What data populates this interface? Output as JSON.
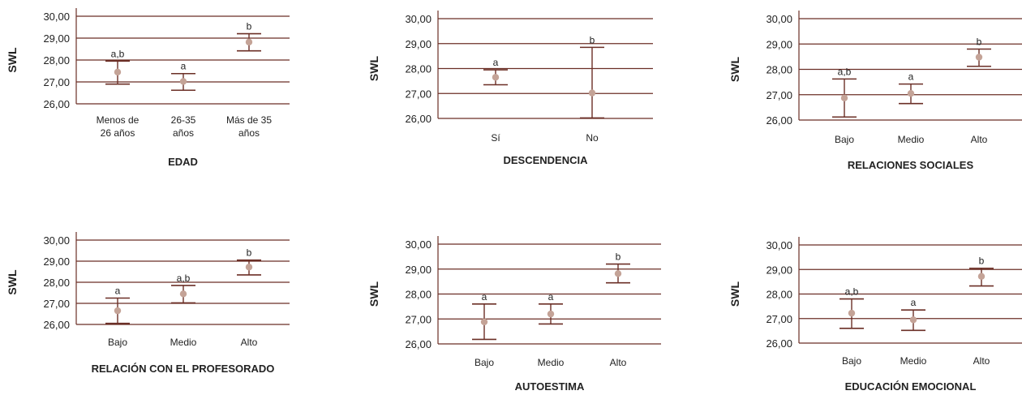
{
  "style": {
    "grid_color": "#6b2f26",
    "bar_color": "#6b2f26",
    "point_color": "#c4a397",
    "text_color": "#222222"
  },
  "chart_data": [
    {
      "type": "errorbar",
      "xlabel": "EDAD",
      "ylabel": "SWL",
      "yticks": [
        "30,00",
        "29,00",
        "28,00",
        "27,00",
        "26,00"
      ],
      "ylim": [
        26,
        30
      ],
      "grid": true,
      "categories": [
        [
          "Menos de",
          "26 años"
        ],
        [
          "26-35",
          "años"
        ],
        [
          "Más de 35",
          "años"
        ]
      ],
      "means": [
        27.45,
        27.02,
        28.82
      ],
      "lower": [
        26.9,
        26.62,
        28.42
      ],
      "upper": [
        27.95,
        27.38,
        29.2
      ],
      "groups": [
        "a,b",
        "a",
        "b"
      ]
    },
    {
      "type": "errorbar",
      "xlabel": "DESCENDENCIA",
      "ylabel": "SWL",
      "yticks": [
        "30,00",
        "29,00",
        "28,00",
        "27,00",
        "26,00"
      ],
      "ylim": [
        26,
        30
      ],
      "grid": true,
      "categories": [
        [
          "Sí"
        ],
        [
          "No"
        ]
      ],
      "means": [
        27.65,
        27.02
      ],
      "lower": [
        27.35,
        26.02
      ],
      "upper": [
        27.95,
        28.85
      ],
      "groups": [
        "a",
        "b"
      ]
    },
    {
      "type": "errorbar",
      "xlabel": "RELACIONES SOCIALES",
      "ylabel": "SWL",
      "yticks": [
        "30,00",
        "29,00",
        "28,00",
        "27,00",
        "26,00"
      ],
      "ylim": [
        26,
        30
      ],
      "grid": true,
      "categories": [
        [
          "Bajo"
        ],
        [
          "Medio"
        ],
        [
          "Alto"
        ]
      ],
      "means": [
        26.87,
        27.05,
        28.48
      ],
      "lower": [
        26.12,
        26.65,
        28.12
      ],
      "upper": [
        27.62,
        27.42,
        28.8
      ],
      "groups": [
        "a,b",
        "a",
        "b"
      ]
    },
    {
      "type": "errorbar",
      "xlabel": "RELACIÓN CON EL PROFESORADO",
      "ylabel": "SWL",
      "yticks": [
        "30,00",
        "29,00",
        "28,00",
        "27,00",
        "26,00"
      ],
      "ylim": [
        26,
        30
      ],
      "grid": true,
      "categories": [
        [
          "Bajo"
        ],
        [
          "Medio"
        ],
        [
          "Alto"
        ]
      ],
      "means": [
        26.65,
        27.45,
        28.72
      ],
      "lower": [
        26.05,
        27.02,
        28.35
      ],
      "upper": [
        27.25,
        27.85,
        29.05
      ],
      "groups": [
        "a",
        "a,b",
        "b"
      ]
    },
    {
      "type": "errorbar",
      "xlabel": "AUTOESTIMA",
      "ylabel": "SWL",
      "yticks": [
        "30,00",
        "29,00",
        "28,00",
        "27,00",
        "26,00"
      ],
      "ylim": [
        26,
        30
      ],
      "grid": true,
      "categories": [
        [
          "Bajo"
        ],
        [
          "Medio"
        ],
        [
          "Alto"
        ]
      ],
      "means": [
        26.88,
        27.2,
        28.82
      ],
      "lower": [
        26.18,
        26.8,
        28.45
      ],
      "upper": [
        27.6,
        27.6,
        29.2
      ],
      "groups": [
        "a",
        "a",
        "b"
      ]
    },
    {
      "type": "errorbar",
      "xlabel": "EDUCACIÓN EMOCIONAL",
      "ylabel": "SWL",
      "yticks": [
        "30,00",
        "29,00",
        "28,00",
        "27,00",
        "26,00"
      ],
      "ylim": [
        26,
        30
      ],
      "grid": true,
      "categories": [
        [
          "Bajo"
        ],
        [
          "Medio"
        ],
        [
          "Alto"
        ]
      ],
      "means": [
        27.22,
        26.95,
        28.72
      ],
      "lower": [
        26.6,
        26.52,
        28.33
      ],
      "upper": [
        27.8,
        27.35,
        29.05
      ],
      "groups": [
        "a,b",
        "a",
        "b"
      ]
    }
  ]
}
